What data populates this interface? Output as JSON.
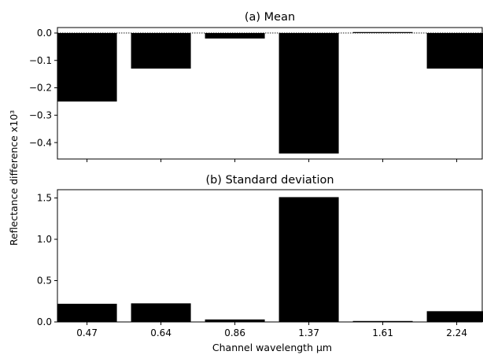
{
  "chart_data": [
    {
      "type": "bar",
      "title": "(a) Mean",
      "categories": [
        "0.47",
        "0.64",
        "0.86",
        "1.37",
        "1.61",
        "2.24"
      ],
      "values": [
        -0.25,
        -0.13,
        -0.02,
        -0.44,
        0.002,
        -0.13
      ],
      "ylim": [
        -0.46,
        0.02
      ],
      "yticks": [
        "0.0",
        "−0.1",
        "−0.2",
        "−0.3",
        "−0.4"
      ],
      "ytick_values": [
        0.0,
        -0.1,
        -0.2,
        -0.3,
        -0.4
      ],
      "zero_line": "dotted",
      "bar_color": "#000000"
    },
    {
      "type": "bar",
      "title": "(b) Standard deviation",
      "categories": [
        "0.47",
        "0.64",
        "0.86",
        "1.37",
        "1.61",
        "2.24"
      ],
      "values": [
        0.22,
        0.225,
        0.03,
        1.51,
        0.01,
        0.13
      ],
      "ylim": [
        0,
        1.6
      ],
      "yticks": [
        "0.0",
        "0.5",
        "1.0",
        "1.5"
      ],
      "ytick_values": [
        0.0,
        0.5,
        1.0,
        1.5
      ],
      "bar_color": "#000000"
    }
  ],
  "shared": {
    "xlabel": "Channel wavelength μm",
    "ylabel": "Reflectance difference x10³"
  }
}
